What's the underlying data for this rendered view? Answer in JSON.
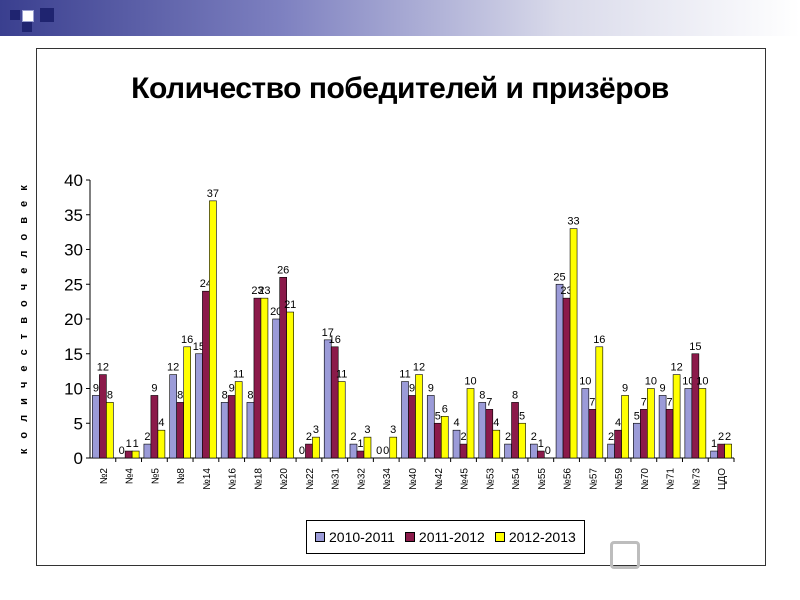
{
  "chart_data": {
    "type": "bar",
    "title": "Количество победителей и призёров",
    "ylabel": "к о л и ч е с т в о   ч е л о в е к",
    "xlabel": "",
    "ylim": [
      0,
      40
    ],
    "yticks": [
      0,
      5,
      10,
      15,
      20,
      25,
      30,
      35,
      40
    ],
    "grid": false,
    "legend_position": "bottom",
    "categories": [
      "№2",
      "№4",
      "№5",
      "№8",
      "№14",
      "№16",
      "№18",
      "№20",
      "№22",
      "№31",
      "№32",
      "№34",
      "№40",
      "№42",
      "№45",
      "№53",
      "№54",
      "№55",
      "№56",
      "№57",
      "№59",
      "№70",
      "№71",
      "№73",
      "ЦДО"
    ],
    "series": [
      {
        "name": "2010-2011",
        "color": "#9b9bd8",
        "values": [
          9,
          0,
          2,
          12,
          15,
          8,
          8,
          20,
          0,
          17,
          2,
          0,
          11,
          9,
          4,
          8,
          2,
          2,
          25,
          10,
          2,
          5,
          9,
          10,
          1
        ]
      },
      {
        "name": "2011-2012",
        "color": "#8b1a4a",
        "values": [
          12,
          1,
          9,
          8,
          24,
          9,
          23,
          26,
          2,
          16,
          1,
          0,
          9,
          5,
          2,
          7,
          8,
          1,
          23,
          7,
          4,
          7,
          7,
          15,
          2
        ]
      },
      {
        "name": "2012-2013",
        "color": "#ffff00",
        "values": [
          8,
          1,
          4,
          16,
          37,
          11,
          23,
          21,
          3,
          11,
          3,
          3,
          12,
          6,
          10,
          4,
          5,
          0,
          33,
          16,
          9,
          10,
          12,
          10,
          2
        ]
      }
    ]
  }
}
